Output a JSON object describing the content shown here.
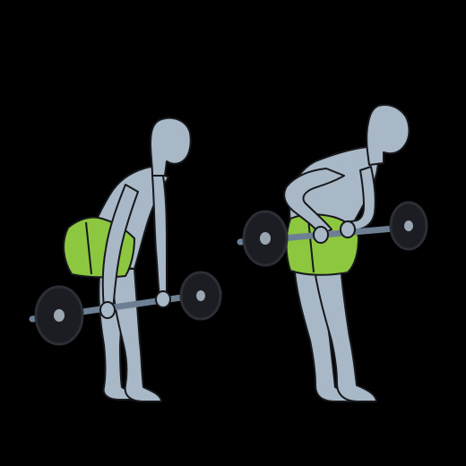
{
  "colors": {
    "background": "#000000",
    "skin": "#a9b8c7",
    "outline": "#16181c",
    "shorts": "#8dc63f",
    "shorts_shade": "#7bb232",
    "bar": "#6d7f93",
    "plate": "#1b1d22",
    "plate_rim": "#2b2e35",
    "collar": "#9aa7b3"
  },
  "figures": [
    {
      "name": "start-position",
      "pose": "bent-over-arms-extended"
    },
    {
      "name": "end-position",
      "pose": "bent-over-bar-pulled-to-waist"
    }
  ]
}
